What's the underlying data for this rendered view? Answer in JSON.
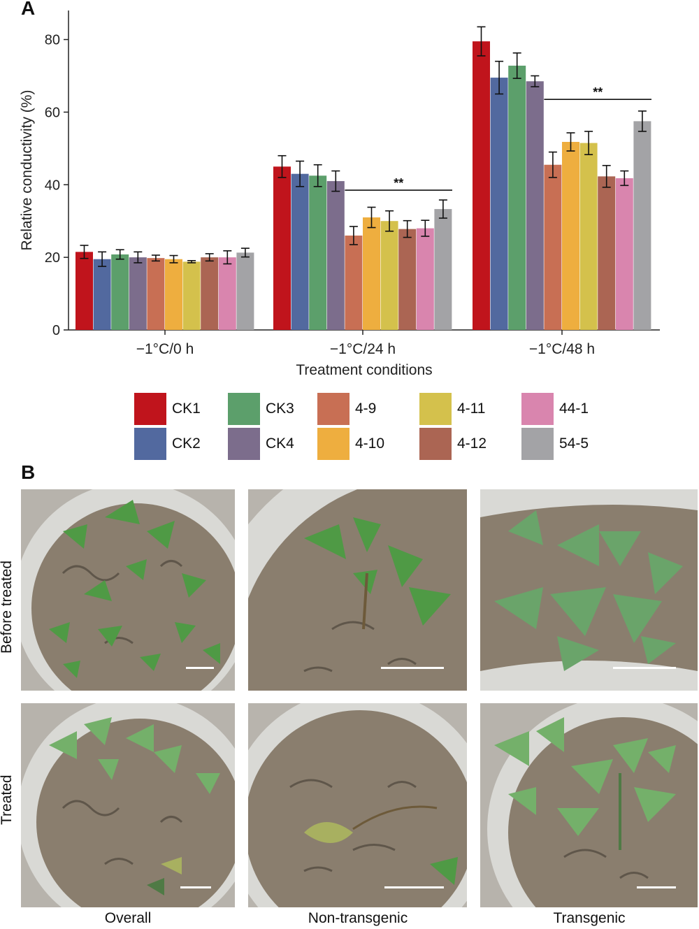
{
  "figure": {
    "panel_a_label": "A",
    "panel_b_label": "B"
  },
  "chart_data": {
    "type": "bar",
    "xlabel": "Treatment conditions",
    "ylabel": "Relative conductivity (%)",
    "ylim": [
      0,
      88
    ],
    "yticks": [
      0,
      20,
      40,
      60,
      80
    ],
    "grid": false,
    "legend_placement": "below",
    "categories": [
      "−1°C/0 h",
      "−1°C/24 h",
      "−1°C/48 h"
    ],
    "series": [
      {
        "name": "CK1",
        "color": "#c0141c",
        "values": [
          21.5,
          45.0,
          79.5
        ],
        "errors": [
          1.8,
          3.0,
          4.0
        ]
      },
      {
        "name": "CK2",
        "color": "#52699f",
        "values": [
          19.5,
          43.0,
          69.5
        ],
        "errors": [
          2.0,
          3.5,
          4.5
        ]
      },
      {
        "name": "CK3",
        "color": "#5c9f6b",
        "values": [
          20.8,
          42.5,
          72.8
        ],
        "errors": [
          1.3,
          3.0,
          3.5
        ]
      },
      {
        "name": "CK4",
        "color": "#7c6d8c",
        "values": [
          20.0,
          41.0,
          68.5
        ],
        "errors": [
          1.5,
          2.8,
          1.5
        ]
      },
      {
        "name": "4-9",
        "color": "#c86f54",
        "values": [
          19.8,
          26.0,
          45.5
        ],
        "errors": [
          0.8,
          2.5,
          3.5
        ]
      },
      {
        "name": "4-10",
        "color": "#eeae3f",
        "values": [
          19.5,
          31.0,
          51.8
        ],
        "errors": [
          1.0,
          2.8,
          2.5
        ]
      },
      {
        "name": "4-11",
        "color": "#d4c14c",
        "values": [
          18.8,
          30.0,
          51.5
        ],
        "errors": [
          0.3,
          2.8,
          3.2
        ]
      },
      {
        "name": "4-12",
        "color": "#ab6553",
        "values": [
          20.0,
          27.8,
          42.3
        ],
        "errors": [
          1.0,
          2.3,
          3.0
        ]
      },
      {
        "name": "44-1",
        "color": "#d985ae",
        "values": [
          20.0,
          28.0,
          41.8
        ],
        "errors": [
          1.8,
          2.2,
          2.0
        ]
      },
      {
        "name": "54-5",
        "color": "#a3a3a6",
        "values": [
          21.3,
          33.3,
          57.5
        ],
        "errors": [
          1.2,
          2.5,
          2.8
        ]
      }
    ],
    "annotations": [
      {
        "category_index": 1,
        "from_series": 4,
        "to_series": 9,
        "y": 38.5,
        "text": "**"
      },
      {
        "category_index": 2,
        "from_series": 4,
        "to_series": 9,
        "y": 63.5,
        "text": "**"
      }
    ]
  },
  "panel_b": {
    "row_labels": [
      "Before treated",
      "Treated"
    ],
    "column_labels": [
      "Overall",
      "Non-transgenic",
      "Transgenic"
    ]
  },
  "colors": {
    "soil": "#8a7e6e",
    "pot_rim": "#d9d9d5",
    "leaf_healthy": "#4f9a45",
    "leaf_pale": "#74b06a",
    "leaf_wilted": "#a8b060"
  }
}
